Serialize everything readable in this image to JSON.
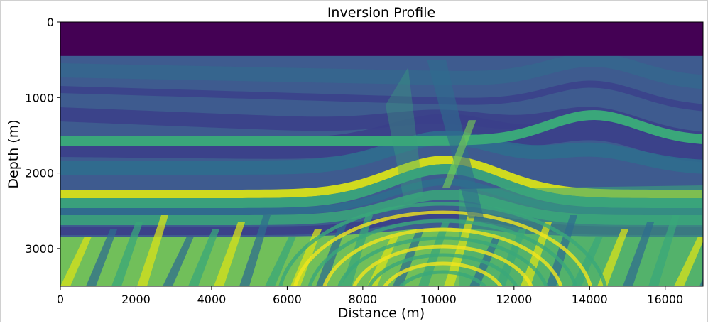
{
  "chart_data": {
    "type": "heatmap",
    "title": "Inversion Profile",
    "xlabel": "Distance (m)",
    "ylabel": "Depth (m)",
    "xlim": [
      0,
      17000
    ],
    "ylim": [
      3500,
      0
    ],
    "y_inverted": true,
    "xticks": [
      0,
      2000,
      4000,
      6000,
      8000,
      10000,
      12000,
      14000,
      16000
    ],
    "yticks": [
      0,
      1000,
      2000,
      3000
    ],
    "grid": false,
    "legend": "none",
    "colormap": "viridis",
    "water_layer_bottom_depth": 450,
    "colors": {
      "water": "#440154",
      "base_fill": "#3e5b8f",
      "dark_band": "#3b3f8a",
      "mid_teal": "#2f6d8e",
      "green": "#3aa77a",
      "bright_green": "#7ad151",
      "yellow": "#d8e219",
      "hot_yellow": "#f2e51d"
    }
  }
}
